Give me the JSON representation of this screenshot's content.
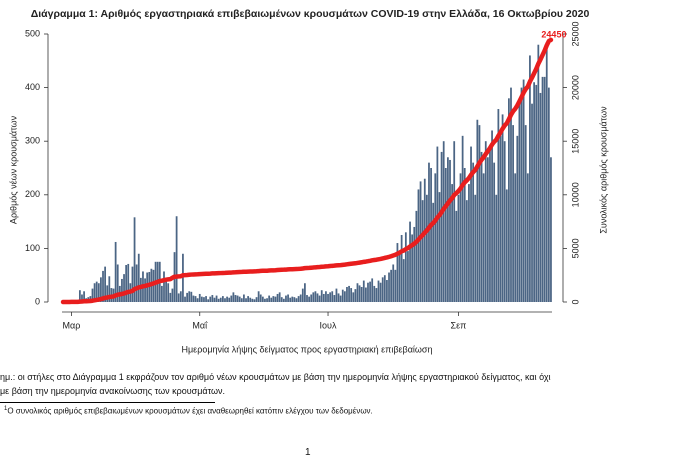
{
  "chart_data": {
    "type": "bar",
    "title": "Διάγραμμα 1: Αριθμός εργαστηριακά επιβεβαιωμένων κρουσμάτων COVID-19 στην Ελλάδα, 16 Οκτωβρίου 2020",
    "x_label": "Ημερομηνία λήψης δείγματος προς εργαστηριακή επιβεβαίωση",
    "y_label": "Αριθμός νέων κρουσμάτων",
    "y2_label": "Συνολικός αριθμός κρουσμάτων",
    "categories": [
      null,
      null,
      null,
      null,
      "Μαρ",
      null,
      null,
      null,
      null,
      null,
      null,
      null,
      null,
      null,
      null,
      null,
      null,
      null,
      null,
      null,
      null,
      null,
      null,
      null,
      null,
      null,
      null,
      null,
      null,
      null,
      null,
      null,
      null,
      null,
      null,
      null,
      null,
      null,
      null,
      null,
      null,
      null,
      null,
      null,
      null,
      null,
      null,
      null,
      null,
      null,
      null,
      null,
      null,
      null,
      null,
      null,
      null,
      null,
      null,
      null,
      null,
      null,
      null,
      null,
      null,
      "Μαΐ",
      null,
      null,
      null,
      null,
      null,
      null,
      null,
      null,
      null,
      null,
      null,
      null,
      null,
      null,
      null,
      null,
      null,
      null,
      null,
      null,
      null,
      null,
      null,
      null,
      null,
      null,
      null,
      null,
      null,
      null,
      null,
      null,
      null,
      null,
      null,
      null,
      null,
      null,
      null,
      null,
      null,
      null,
      null,
      null,
      null,
      null,
      null,
      null,
      null,
      null,
      null,
      null,
      null,
      null,
      null,
      null,
      null,
      null,
      null,
      null,
      "Ιουλ",
      null,
      null,
      null,
      null,
      null,
      null,
      null,
      null,
      null,
      null,
      null,
      null,
      null,
      null,
      null,
      null,
      null,
      null,
      null,
      null,
      null,
      null,
      null,
      null,
      null,
      null,
      null,
      null,
      null,
      null,
      null,
      null,
      null,
      null,
      null,
      null,
      null,
      null,
      null,
      null,
      null,
      null,
      null,
      null,
      null,
      null,
      null,
      null,
      null,
      null,
      null,
      null,
      null,
      null,
      null,
      null,
      null,
      null,
      null,
      null,
      null,
      "Σεπ",
      null,
      null,
      null,
      null,
      null,
      null,
      null,
      null,
      null,
      null,
      null,
      null,
      null,
      null,
      null,
      null,
      null,
      null,
      null,
      null,
      null,
      null,
      null,
      null,
      null,
      null,
      null,
      null,
      null,
      null,
      null,
      null,
      null,
      null,
      null,
      null,
      null,
      null,
      null,
      null,
      null,
      null,
      null,
      null
    ],
    "series": [
      {
        "type": "bar",
        "color": "#4b6584",
        "values": [
          1,
          1,
          1,
          0,
          3,
          0,
          2,
          3,
          22,
          14,
          20,
          7,
          9,
          11,
          25,
          35,
          38,
          35,
          46,
          58,
          66,
          31,
          48,
          26,
          25,
          112,
          70,
          30,
          43,
          52,
          69,
          71,
          35,
          66,
          158,
          70,
          90,
          45,
          57,
          44,
          55,
          56,
          62,
          60,
          75,
          75,
          75,
          30,
          57,
          41,
          35,
          17,
          25,
          93,
          160,
          16,
          20,
          90,
          10,
          17,
          20,
          19,
          12,
          11,
          7,
          15,
          10,
          9,
          11,
          5,
          10,
          13,
          8,
          12,
          6,
          8,
          11,
          7,
          10,
          8,
          12,
          18,
          13,
          12,
          10,
          7,
          14,
          7,
          11,
          8,
          6,
          5,
          9,
          20,
          14,
          10,
          6,
          7,
          12,
          8,
          11,
          10,
          15,
          18,
          9,
          6,
          12,
          14,
          8,
          10,
          9,
          7,
          11,
          14,
          25,
          35,
          13,
          10,
          14,
          18,
          20,
          16,
          12,
          22,
          15,
          20,
          15,
          18,
          20,
          13,
          25,
          16,
          12,
          23,
          20,
          28,
          30,
          26,
          18,
          24,
          35,
          31,
          28,
          40,
          27,
          36,
          38,
          44,
          30,
          26,
          40,
          36,
          46,
          50,
          41,
          55,
          60,
          70,
          60,
          110,
          90,
          125,
          80,
          130,
          95,
          150,
          126,
          140,
          170,
          210,
          225,
          190,
          230,
          200,
          260,
          250,
          185,
          240,
          290,
          205,
          280,
          300,
          250,
          270,
          265,
          220,
          300,
          170,
          200,
          240,
          310,
          250,
          190,
          220,
          290,
          260,
          200,
          340,
          330,
          280,
          240,
          300,
          270,
          290,
          320,
          260,
          200,
          360,
          310,
          350,
          300,
          210,
          380,
          400,
          330,
          240,
          310,
          380,
          400,
          415,
          330,
          240,
          460,
          370,
          410,
          405,
          480,
          390,
          420,
          420,
          485,
          400,
          270
        ]
      },
      {
        "type": "line",
        "axis": "y2",
        "color": "#e81e1e",
        "end_label": true,
        "values": [
          0,
          0,
          3,
          3,
          7,
          7,
          9,
          12,
          34,
          48,
          68,
          75,
          84,
          95,
          120,
          155,
          190,
          225,
          270,
          330,
          390,
          420,
          470,
          495,
          520,
          610,
          680,
          710,
          750,
          800,
          870,
          940,
          975,
          1040,
          1200,
          1270,
          1360,
          1405,
          1460,
          1500,
          1555,
          1610,
          1670,
          1730,
          1805,
          1880,
          1955,
          1985,
          2040,
          2080,
          2115,
          2130,
          2265,
          2360,
          2370,
          2385,
          2405,
          2495,
          2505,
          2520,
          2540,
          2560,
          2570,
          2580,
          2590,
          2605,
          2615,
          2625,
          2635,
          2640,
          2650,
          2665,
          2675,
          2685,
          2690,
          2700,
          2710,
          2715,
          2725,
          2735,
          2745,
          2765,
          2775,
          2790,
          2800,
          2805,
          2820,
          2825,
          2835,
          2845,
          2850,
          2855,
          2865,
          2885,
          2900,
          2910,
          2915,
          2920,
          2935,
          2945,
          2955,
          2965,
          2980,
          3000,
          3010,
          3015,
          3025,
          3040,
          3050,
          3060,
          3065,
          3075,
          3085,
          3100,
          3125,
          3160,
          3175,
          3185,
          3200,
          3215,
          3235,
          3250,
          3265,
          3285,
          3300,
          3320,
          3335,
          3355,
          3375,
          3390,
          3415,
          3430,
          3440,
          3465,
          3485,
          3515,
          3545,
          3570,
          3590,
          3610,
          3645,
          3675,
          3705,
          3745,
          3770,
          3805,
          3845,
          3890,
          3920,
          3945,
          3985,
          4020,
          4065,
          4115,
          4155,
          4210,
          4270,
          4340,
          4400,
          4510,
          4600,
          4725,
          4805,
          4935,
          5030,
          5180,
          5305,
          5445,
          5615,
          5825,
          6050,
          6240,
          6470,
          6670,
          6930,
          7180,
          7365,
          7605,
          7895,
          8100,
          8380,
          8680,
          8930,
          9200,
          9465,
          9685,
          9985,
          10155,
          10355,
          10595,
          10905,
          11155,
          11345,
          11565,
          11855,
          12115,
          12315,
          12655,
          12985,
          13265,
          13505,
          13805,
          14075,
          14365,
          14685,
          14945,
          15145,
          15505,
          15815,
          16165,
          16465,
          16675,
          17055,
          17455,
          17785,
          18025,
          18335,
          18715,
          19115,
          19530,
          19860,
          20100,
          20560,
          20930,
          21340,
          21745,
          22225,
          22615,
          23035,
          23455,
          23940,
          24340,
          24450
        ]
      }
    ],
    "ylim": [
      0,
      500
    ],
    "yticks": [
      0,
      100,
      200,
      300,
      400,
      500
    ],
    "y2lim": [
      0,
      25000
    ],
    "y2ticks": [
      0,
      5000,
      10000,
      15000,
      20000,
      25000
    ],
    "grid": false
  },
  "document": {
    "note": [
      "ημ.: οι στήλες στο Διάγραμμα 1 εκφράζουν τον αριθμό νέων κρουσμάτων με βάση την ημερομηνία λήψης εργαστηριακού δείγματος, και όχι",
      "με βάση την ημερομηνία ανακοίνωσης των κρουσμάτων."
    ],
    "footnote_mark": "1",
    "footnote": "Ο συνολικός αριθμός επιβεβαιωμένων κρουσμάτων έχει αναθεωρηθεί κατόπιν ελέγχου των δεδομένων.",
    "page_number": "1"
  }
}
